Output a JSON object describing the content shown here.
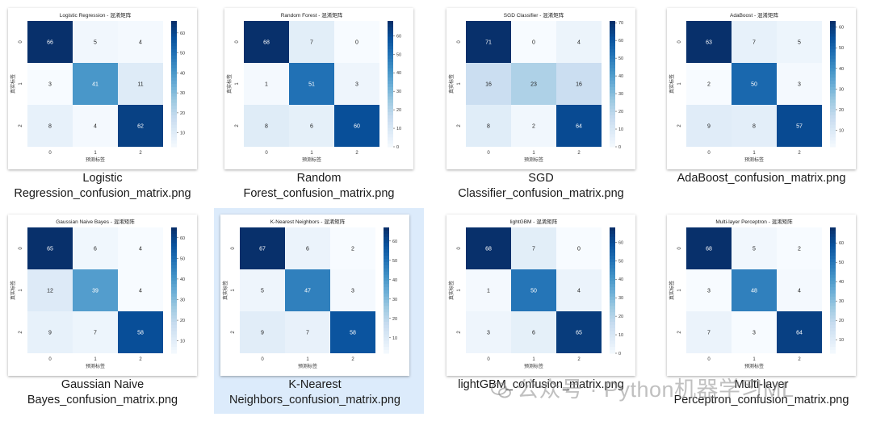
{
  "files": [
    {
      "caption_lines": [
        "Logistic",
        "Regression_confusion_matrix.png"
      ],
      "chart_data": {
        "type": "heatmap",
        "title": "Logistic Regression - 混淆矩阵",
        "xlabel": "预测标签",
        "ylabel": "真实标签",
        "x_ticks": [
          "0",
          "1",
          "2"
        ],
        "y_ticks": [
          "0",
          "1",
          "2"
        ],
        "matrix": [
          [
            66,
            5,
            4
          ],
          [
            3,
            41,
            11
          ],
          [
            8,
            4,
            62
          ]
        ],
        "colorbar_ticks": [
          "10",
          "20",
          "30",
          "40",
          "50",
          "60"
        ],
        "vmin": 3,
        "vmax": 66
      }
    },
    {
      "caption_lines": [
        "Random",
        "Forest_confusion_matrix.png"
      ],
      "chart_data": {
        "type": "heatmap",
        "title": "Random Forest - 混淆矩阵",
        "xlabel": "预测标签",
        "ylabel": "真实标签",
        "x_ticks": [
          "0",
          "1",
          "2"
        ],
        "y_ticks": [
          "0",
          "1",
          "2"
        ],
        "matrix": [
          [
            68,
            7,
            0
          ],
          [
            1,
            51,
            3
          ],
          [
            8,
            6,
            60
          ]
        ],
        "colorbar_ticks": [
          "0",
          "10",
          "20",
          "30",
          "40",
          "50",
          "60"
        ],
        "vmin": 0,
        "vmax": 68
      }
    },
    {
      "caption_lines": [
        "SGD",
        "Classifier_confusion_matrix.png"
      ],
      "chart_data": {
        "type": "heatmap",
        "title": "SGD Classifier - 混淆矩阵",
        "xlabel": "预测标签",
        "ylabel": "真实标签",
        "x_ticks": [
          "0",
          "1",
          "2"
        ],
        "y_ticks": [
          "0",
          "1",
          "2"
        ],
        "matrix": [
          [
            71,
            0,
            4
          ],
          [
            16,
            23,
            16
          ],
          [
            8,
            2,
            64
          ]
        ],
        "colorbar_ticks": [
          "0",
          "10",
          "20",
          "30",
          "40",
          "50",
          "60",
          "70"
        ],
        "vmin": 0,
        "vmax": 71
      }
    },
    {
      "caption_lines": [
        "AdaBoost_confusion_matrix.png"
      ],
      "chart_data": {
        "type": "heatmap",
        "title": "AdaBoost - 混淆矩阵",
        "xlabel": "预测标签",
        "ylabel": "真实标签",
        "x_ticks": [
          "0",
          "1",
          "2"
        ],
        "y_ticks": [
          "0",
          "1",
          "2"
        ],
        "matrix": [
          [
            63,
            7,
            5
          ],
          [
            2,
            50,
            3
          ],
          [
            9,
            8,
            57
          ]
        ],
        "colorbar_ticks": [
          "10",
          "20",
          "30",
          "40",
          "50",
          "60"
        ],
        "vmin": 2,
        "vmax": 63
      }
    },
    {
      "caption_lines": [
        "Gaussian Naive",
        "Bayes_confusion_matrix.png"
      ],
      "chart_data": {
        "type": "heatmap",
        "title": "Gaussian Naive Bayes - 混淆矩阵",
        "xlabel": "预测标签",
        "ylabel": "真实标签",
        "x_ticks": [
          "0",
          "1",
          "2"
        ],
        "y_ticks": [
          "0",
          "1",
          "2"
        ],
        "matrix": [
          [
            65,
            6,
            4
          ],
          [
            12,
            39,
            4
          ],
          [
            9,
            7,
            58
          ]
        ],
        "colorbar_ticks": [
          "10",
          "20",
          "30",
          "40",
          "50",
          "60"
        ],
        "vmin": 4,
        "vmax": 65
      }
    },
    {
      "caption_lines": [
        "K-Nearest",
        "Neighbors_confusion_matrix.png"
      ],
      "chart_data": {
        "type": "heatmap",
        "title": "K-Nearest Neighbors - 混淆矩阵",
        "xlabel": "预测标签",
        "ylabel": "真实标签",
        "x_ticks": [
          "0",
          "1",
          "2"
        ],
        "y_ticks": [
          "0",
          "1",
          "2"
        ],
        "matrix": [
          [
            67,
            6,
            2
          ],
          [
            5,
            47,
            3
          ],
          [
            9,
            7,
            58
          ]
        ],
        "colorbar_ticks": [
          "10",
          "20",
          "30",
          "40",
          "50",
          "60"
        ],
        "vmin": 2,
        "vmax": 67
      }
    },
    {
      "caption_lines": [
        "lightGBM_confusion_matrix.png"
      ],
      "chart_data": {
        "type": "heatmap",
        "title": "lightGBM - 混淆矩阵",
        "xlabel": "预测标签",
        "ylabel": "真实标签",
        "x_ticks": [
          "0",
          "1",
          "2"
        ],
        "y_ticks": [
          "0",
          "1",
          "2"
        ],
        "matrix": [
          [
            68,
            7,
            0
          ],
          [
            1,
            50,
            4
          ],
          [
            3,
            6,
            65
          ]
        ],
        "colorbar_ticks": [
          "0",
          "10",
          "20",
          "30",
          "40",
          "50",
          "60"
        ],
        "vmin": 0,
        "vmax": 68
      }
    },
    {
      "caption_lines": [
        "Multi-layer",
        "Perceptron_confusion_matrix.png"
      ],
      "chart_data": {
        "type": "heatmap",
        "title": "Multi-layer Perceptron - 混淆矩阵",
        "xlabel": "预测标签",
        "ylabel": "真实标签",
        "x_ticks": [
          "0",
          "1",
          "2"
        ],
        "y_ticks": [
          "0",
          "1",
          "2"
        ],
        "matrix": [
          [
            68,
            5,
            2
          ],
          [
            3,
            48,
            4
          ],
          [
            7,
            3,
            64
          ]
        ],
        "colorbar_ticks": [
          "10",
          "20",
          "30",
          "40",
          "50",
          "60"
        ],
        "vmin": 3,
        "vmax": 68
      }
    }
  ],
  "watermark": "公众号 · Python机器学习ML",
  "colors": {
    "cmap_low": "#f7fbff",
    "cmap_mid": "#6baed6",
    "cmap_high": "#08306b",
    "selection": "#dcebfb"
  }
}
